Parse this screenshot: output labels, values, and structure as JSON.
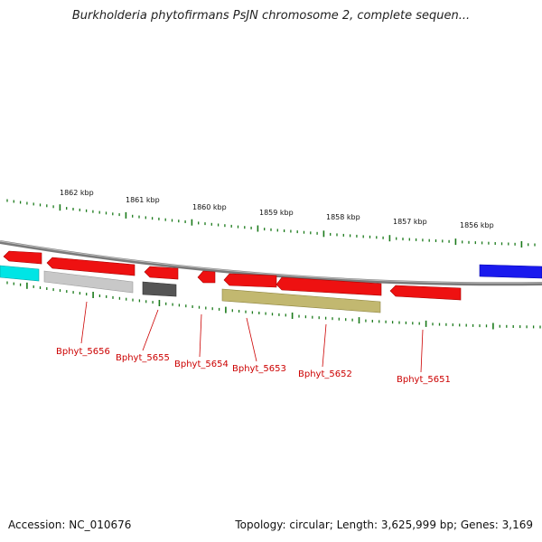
{
  "title": "Burkholderia phytofirmans PsJN chromosome 2, complete sequen...",
  "footer": {
    "accession": "Accession: NC_010676",
    "topology": "Topology: circular; Length: 3,625,999 bp; Genes: 3,169"
  },
  "scale_labels": [
    "1862 kbp",
    "1861 kbp",
    "1860 kbp",
    "1859 kbp",
    "1858 kbp",
    "1857 kbp",
    "1856 kbp"
  ],
  "gene_labels": [
    "Bphyt_5656",
    "Bphyt_5655",
    "Bphyt_5654",
    "Bphyt_5653",
    "Bphyt_5652",
    "Bphyt_5651"
  ],
  "colors": {
    "gene_red": "#ee1111",
    "cyan": "#00e5e5",
    "blue": "#1a1aee",
    "light_gray": "#c8c8c8",
    "dark_gray": "#555555",
    "olive": "#c2b870",
    "backbone": "#7a7a7a",
    "tick_green": "#1a7a1a",
    "label_red": "#cc0000"
  }
}
